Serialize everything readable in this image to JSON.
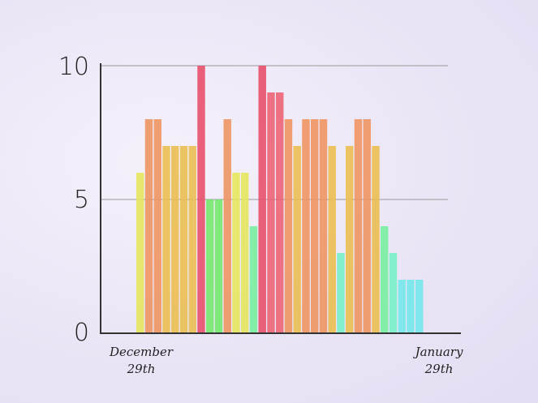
{
  "chart_data": {
    "type": "bar",
    "values": [
      6,
      8,
      8,
      7,
      7,
      7,
      7,
      10,
      5,
      5,
      8,
      6,
      6,
      4,
      10,
      9,
      9,
      8,
      7,
      8,
      8,
      8,
      7,
      3,
      7,
      8,
      8,
      7,
      4,
      3,
      2,
      2,
      2
    ],
    "x_tick_labels": [
      {
        "line1": "December",
        "line2": "29th"
      },
      {
        "line1": "January",
        "line2": "29th"
      }
    ],
    "y_ticks": [
      "0",
      "5",
      "10"
    ],
    "ylim": [
      0,
      10
    ],
    "grid": true,
    "title": "",
    "xlabel": "",
    "ylabel": "",
    "value_colors": {
      "10": "#e8506c",
      "9": "#ec6474",
      "8": "#ee9562",
      "7": "#ebbe52",
      "6": "#e6e65e",
      "5": "#74e86e",
      "4": "#78eea0",
      "3": "#78f0c8",
      "2": "#74e8ec"
    }
  }
}
